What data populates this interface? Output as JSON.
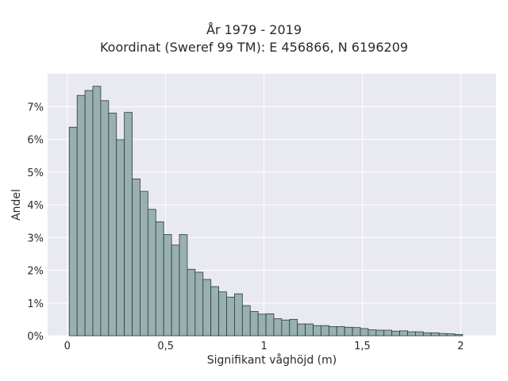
{
  "chart_data": {
    "type": "bar",
    "title": "År 1979 - 2019",
    "subtitle": "Koordinat (Sweref 99 TM): E 456866, N 6196209",
    "xlabel": "Signifikant våghöjd (m)",
    "ylabel": "Andel",
    "xlim": [
      -0.1,
      2.18
    ],
    "ylim": [
      0,
      0.08
    ],
    "x_ticks": [
      {
        "value": 0,
        "label": "0"
      },
      {
        "value": 0.5,
        "label": "0,5"
      },
      {
        "value": 1,
        "label": "1"
      },
      {
        "value": 1.5,
        "label": "1,5"
      },
      {
        "value": 2,
        "label": "2"
      }
    ],
    "y_ticks": [
      {
        "value": 0,
        "label": "0%"
      },
      {
        "value": 0.01,
        "label": "1%"
      },
      {
        "value": 0.02,
        "label": "2%"
      },
      {
        "value": 0.03,
        "label": "3%"
      },
      {
        "value": 0.04,
        "label": "4%"
      },
      {
        "value": 0.05,
        "label": "5%"
      },
      {
        "value": 0.06,
        "label": "6%"
      },
      {
        "value": 0.07,
        "label": "7%"
      }
    ],
    "bin_width": 0.04,
    "bin_start": 0.01,
    "values": [
      0.0637,
      0.0734,
      0.0749,
      0.0762,
      0.0718,
      0.068,
      0.0599,
      0.0682,
      0.0479,
      0.0441,
      0.0386,
      0.0348,
      0.0309,
      0.0277,
      0.0309,
      0.0203,
      0.0194,
      0.0172,
      0.015,
      0.0134,
      0.0118,
      0.0128,
      0.0092,
      0.0074,
      0.0066,
      0.0067,
      0.0052,
      0.0048,
      0.005,
      0.0036,
      0.0036,
      0.0031,
      0.0031,
      0.0028,
      0.0028,
      0.0026,
      0.0025,
      0.0022,
      0.0018,
      0.0017,
      0.0017,
      0.0014,
      0.0015,
      0.0012,
      0.0012,
      0.0009,
      0.0009,
      0.0007,
      0.0006,
      0.0004
    ],
    "grid": true,
    "colors": {
      "bar_fill": "#98b1b0",
      "bar_edge": "#2b3a3a",
      "plot_background": "#e9e9f2",
      "grid": "#ffffff"
    }
  }
}
